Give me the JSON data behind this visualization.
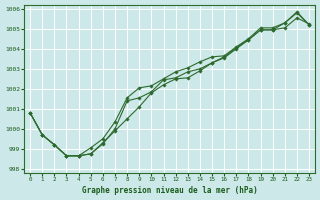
{
  "title": "Graphe pression niveau de la mer (hPa)",
  "bg_color": "#cce8e8",
  "grid_color": "#ffffff",
  "line_color": "#2d6a2d",
  "marker_color": "#2d6a2d",
  "xlim": [
    -0.5,
    23.5
  ],
  "ylim": [
    997.8,
    1006.2
  ],
  "xticks": [
    0,
    1,
    2,
    3,
    4,
    5,
    6,
    7,
    8,
    9,
    10,
    11,
    12,
    13,
    14,
    15,
    16,
    17,
    18,
    19,
    20,
    21,
    22,
    23
  ],
  "yticks": [
    998,
    999,
    1000,
    1001,
    1002,
    1003,
    1004,
    1005,
    1006
  ],
  "series1": [
    1000.8,
    999.7,
    999.2,
    998.65,
    998.65,
    998.75,
    999.3,
    999.9,
    1000.5,
    1001.1,
    1001.8,
    1002.2,
    1002.5,
    1002.55,
    1002.9,
    1003.3,
    1003.55,
    1004.0,
    1004.45,
    1004.95,
    1004.95,
    1005.05,
    1005.55,
    1005.25
  ],
  "series2": [
    1000.8,
    999.7,
    999.2,
    998.65,
    998.65,
    998.75,
    999.25,
    1000.0,
    1001.4,
    1001.55,
    1001.85,
    1002.45,
    1002.55,
    1002.85,
    1003.0,
    1003.3,
    1003.6,
    1004.05,
    1004.45,
    1004.95,
    1004.95,
    1005.3,
    1005.8,
    1005.2
  ],
  "series3": [
    1000.8,
    999.7,
    999.2,
    998.65,
    998.65,
    999.05,
    999.5,
    1000.35,
    1001.55,
    1002.05,
    1002.15,
    1002.5,
    1002.85,
    1003.05,
    1003.35,
    1003.6,
    1003.65,
    1004.1,
    1004.5,
    1005.05,
    1005.05,
    1005.3,
    1005.85,
    1005.2
  ]
}
